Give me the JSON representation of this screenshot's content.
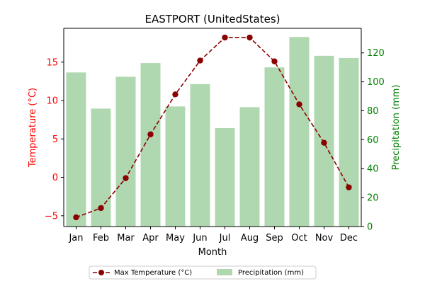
{
  "chart_data": {
    "type": "bar",
    "title": "EASTPORT (UnitedStates)",
    "xlabel": "Month",
    "categories": [
      "Jan",
      "Feb",
      "Mar",
      "Apr",
      "May",
      "Jun",
      "Jul",
      "Aug",
      "Sep",
      "Oct",
      "Nov",
      "Dec"
    ],
    "axes": {
      "left": {
        "label": "Temperature (°C)",
        "color": "#ff0000",
        "ylim": [
          -6.4,
          19.4
        ],
        "ticks": [
          -5,
          0,
          5,
          10,
          15
        ],
        "tick_labels": [
          "−5",
          "0",
          "5",
          "10",
          "15"
        ]
      },
      "right": {
        "label": "Precipitation (mm)",
        "color": "#008000",
        "ylim": [
          0,
          137
        ],
        "ticks": [
          0,
          20,
          40,
          60,
          80,
          100,
          120
        ],
        "tick_labels": [
          "0",
          "20",
          "40",
          "60",
          "80",
          "100",
          "120"
        ]
      }
    },
    "series": [
      {
        "name": "Max Temperature (°C)",
        "type": "line",
        "axis": "left",
        "color": "#8b0000",
        "style": "dashed",
        "marker": "circle",
        "values": [
          -5.2,
          -4.0,
          -0.1,
          5.6,
          10.8,
          15.2,
          18.2,
          18.2,
          15.1,
          9.5,
          4.5,
          -1.3
        ]
      },
      {
        "name": "Precipitation (mm)",
        "type": "bar",
        "axis": "right",
        "color": "#b0d8b0",
        "values": [
          106.5,
          81.5,
          103.5,
          113.0,
          83.0,
          98.5,
          68.0,
          82.5,
          110.0,
          131.0,
          118.0,
          116.5
        ]
      }
    ],
    "legend": {
      "placement": "bottom-center",
      "columns": 2
    },
    "grid": false
  }
}
